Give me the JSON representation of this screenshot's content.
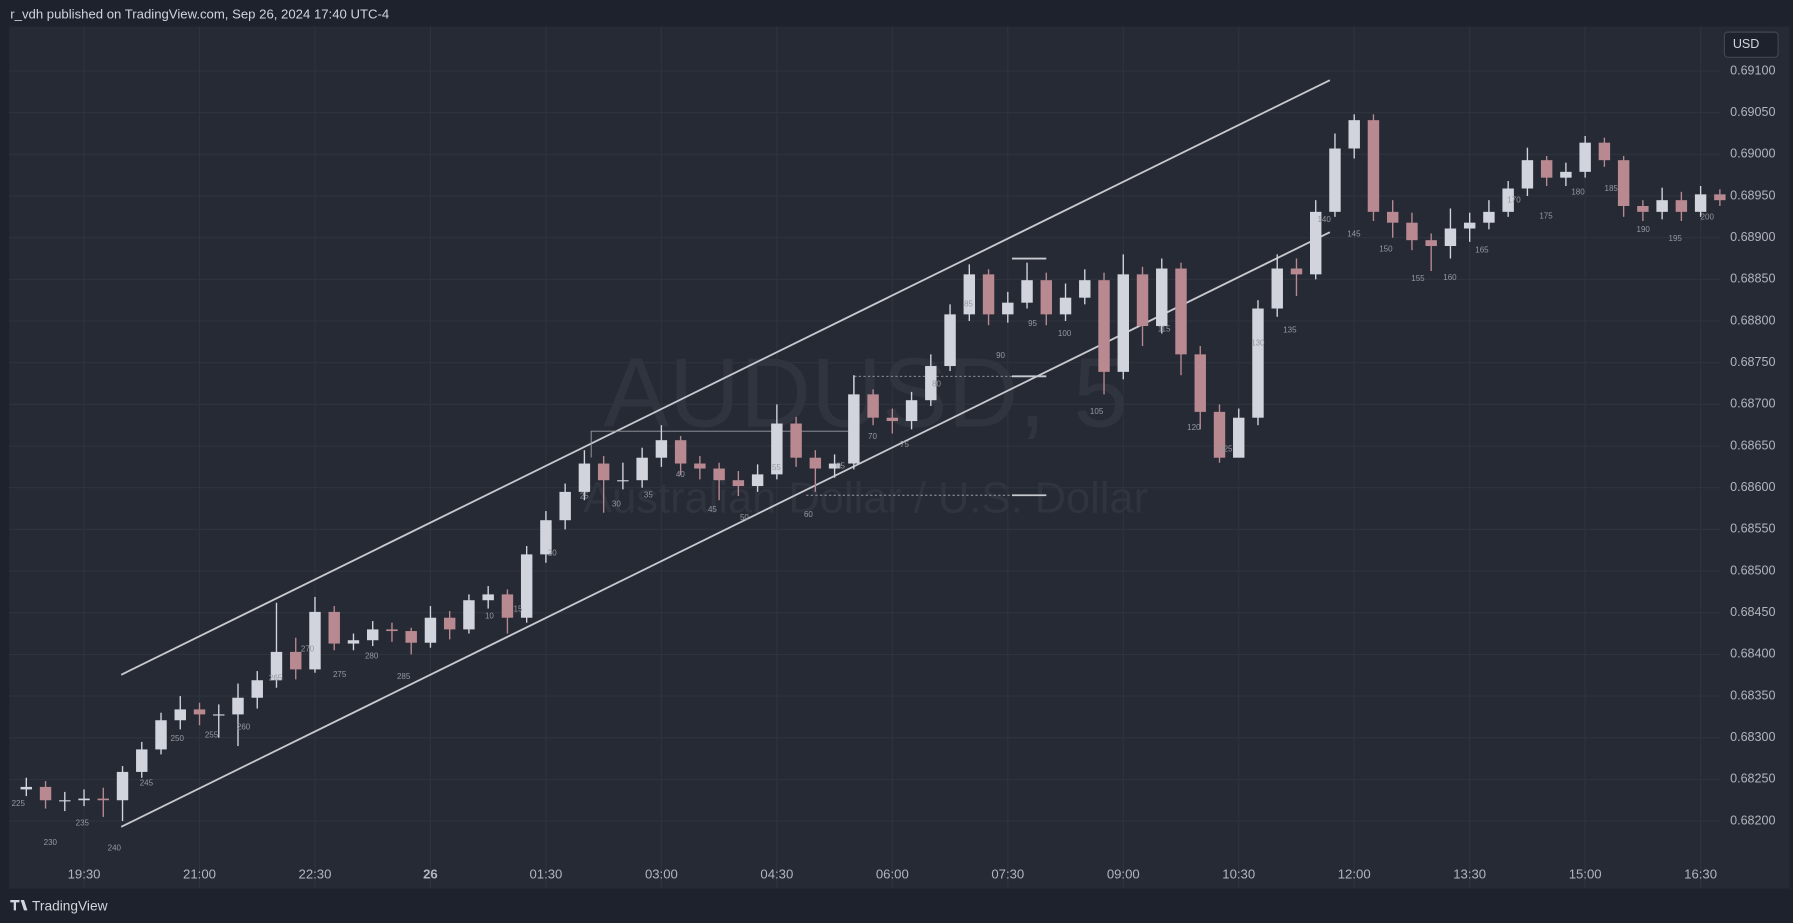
{
  "publisher_line": "r_vdh published on TradingView.com, Sep 26, 2024 17:40 UTC-4",
  "currency": "USD",
  "brand": "TradingView",
  "chart_data": {
    "type": "candlestick",
    "title": "AUDUSD, 5",
    "subtitle": "Australian Dollar / U.S. Dollar",
    "up_color": "#d1d4dc",
    "down_color": "#b88990",
    "grid": true,
    "categories": [
      null,
      null,
      null,
      "19:30",
      null,
      null,
      null,
      null,
      null,
      "21:00",
      null,
      null,
      null,
      null,
      null,
      "22:30",
      null,
      null,
      null,
      null,
      null,
      "26",
      null,
      null,
      null,
      null,
      null,
      "01:30",
      null,
      null,
      null,
      null,
      null,
      "03:00",
      null,
      null,
      null,
      null,
      null,
      "04:30",
      null,
      null,
      null,
      null,
      null,
      "06:00",
      null,
      null,
      null,
      null,
      null,
      "07:30",
      null,
      null,
      null,
      null,
      null,
      "09:00",
      null,
      null,
      null,
      null,
      null,
      "10:30",
      null,
      null,
      null,
      null,
      null,
      "12:00",
      null,
      null,
      null,
      null,
      null,
      "13:30",
      null,
      null,
      null,
      null,
      null,
      "15:00",
      null,
      null,
      null,
      null,
      null,
      "16:30",
      null
    ],
    "open": [
      0.68238,
      0.68241,
      0.68225,
      0.68225,
      0.68227,
      0.68225,
      0.68259,
      0.68286,
      0.68321,
      0.68334,
      0.68328,
      0.68328,
      0.68348,
      0.68369,
      0.68403,
      0.68382,
      0.68451,
      0.68413,
      0.68417,
      0.6843,
      0.68428,
      0.68414,
      0.68444,
      0.6843,
      0.68465,
      0.68472,
      0.68444,
      0.6852,
      0.68561,
      0.68595,
      0.68629,
      0.68609,
      0.68609,
      0.68636,
      0.68657,
      0.68629,
      0.68623,
      0.68609,
      0.68602,
      0.68616,
      0.68677,
      0.68636,
      0.68623,
      0.68629,
      0.68712,
      0.68684,
      0.6868,
      0.68705,
      0.68746,
      0.68808,
      0.68856,
      0.68808,
      0.68822,
      0.68849,
      0.68808,
      0.68828,
      0.68849,
      0.68739,
      0.68856,
      0.68794,
      0.68863,
      0.6876,
      0.68691,
      0.68636,
      0.68684,
      0.68815,
      0.68863,
      0.68856,
      0.68931,
      0.69007,
      0.69041,
      0.68931,
      0.68918,
      0.68897,
      0.6889,
      0.68911,
      0.68918,
      0.68931,
      0.68959,
      0.68993,
      0.68972,
      0.68979,
      0.69014,
      0.68993,
      0.68938,
      0.68931,
      0.68945,
      0.68931,
      0.68952
    ],
    "high": [
      0.68252,
      0.68248,
      0.68235,
      0.68238,
      0.6824,
      0.68266,
      0.68295,
      0.6833,
      0.6835,
      0.68342,
      0.6834,
      0.68365,
      0.6838,
      0.68462,
      0.6842,
      0.68469,
      0.68458,
      0.68425,
      0.6844,
      0.68438,
      0.68432,
      0.68458,
      0.68452,
      0.68472,
      0.68482,
      0.68478,
      0.6853,
      0.68572,
      0.68605,
      0.68645,
      0.68638,
      0.6863,
      0.68648,
      0.68675,
      0.68662,
      0.68638,
      0.6863,
      0.6862,
      0.68628,
      0.687,
      0.68685,
      0.68645,
      0.6864,
      0.68735,
      0.68718,
      0.68695,
      0.68715,
      0.6876,
      0.6882,
      0.68868,
      0.68862,
      0.68835,
      0.6887,
      0.68858,
      0.68845,
      0.68862,
      0.68858,
      0.6888,
      0.68865,
      0.68875,
      0.6887,
      0.6877,
      0.687,
      0.68695,
      0.68825,
      0.6888,
      0.68875,
      0.68945,
      0.69025,
      0.69048,
      0.69048,
      0.68945,
      0.6893,
      0.68905,
      0.68935,
      0.6893,
      0.68945,
      0.68968,
      0.69008,
      0.68998,
      0.6899,
      0.69022,
      0.6902,
      0.68998,
      0.68945,
      0.6896,
      0.68955,
      0.68962,
      0.68958
    ],
    "low": [
      0.6823,
      0.68215,
      0.68212,
      0.68218,
      0.68205,
      0.682,
      0.68252,
      0.6828,
      0.6831,
      0.68315,
      0.683,
      0.6829,
      0.68335,
      0.6836,
      0.6837,
      0.68378,
      0.68405,
      0.68405,
      0.6841,
      0.68415,
      0.684,
      0.68408,
      0.68418,
      0.68425,
      0.68455,
      0.68425,
      0.68438,
      0.6851,
      0.6855,
      0.68585,
      0.6857,
      0.68598,
      0.686,
      0.68625,
      0.68615,
      0.6861,
      0.68585,
      0.6859,
      0.68595,
      0.6861,
      0.68625,
      0.68595,
      0.68612,
      0.68622,
      0.68675,
      0.68665,
      0.6867,
      0.68698,
      0.6874,
      0.688,
      0.68795,
      0.68798,
      0.68815,
      0.68795,
      0.688,
      0.6882,
      0.68712,
      0.6873,
      0.6877,
      0.68785,
      0.68735,
      0.6867,
      0.6863,
      0.6864,
      0.68675,
      0.68805,
      0.6883,
      0.6885,
      0.68925,
      0.68995,
      0.6892,
      0.689,
      0.68885,
      0.6886,
      0.68875,
      0.68895,
      0.6891,
      0.68925,
      0.6895,
      0.68962,
      0.68962,
      0.68972,
      0.68985,
      0.68925,
      0.6892,
      0.68922,
      0.6892,
      0.68925,
      0.68938
    ],
    "close": [
      0.68241,
      0.68225,
      0.68225,
      0.68227,
      0.68225,
      0.68259,
      0.68286,
      0.68321,
      0.68334,
      0.68328,
      0.68328,
      0.68348,
      0.68369,
      0.68403,
      0.68382,
      0.68451,
      0.68413,
      0.68417,
      0.6843,
      0.68428,
      0.68414,
      0.68444,
      0.6843,
      0.68465,
      0.68472,
      0.68444,
      0.6852,
      0.68561,
      0.68595,
      0.68629,
      0.68609,
      0.68609,
      0.68636,
      0.68657,
      0.68629,
      0.68623,
      0.68609,
      0.68602,
      0.68616,
      0.68677,
      0.68636,
      0.68623,
      0.68629,
      0.68712,
      0.68684,
      0.6868,
      0.68705,
      0.68746,
      0.68808,
      0.68856,
      0.68808,
      0.68822,
      0.68849,
      0.68808,
      0.68828,
      0.68849,
      0.68739,
      0.68856,
      0.68794,
      0.68863,
      0.6876,
      0.68691,
      0.68636,
      0.68684,
      0.68815,
      0.68863,
      0.68856,
      0.68931,
      0.69007,
      0.69041,
      0.68931,
      0.68918,
      0.68897,
      0.6889,
      0.68911,
      0.68918,
      0.68931,
      0.68959,
      0.68993,
      0.68972,
      0.68979,
      0.69014,
      0.68993,
      0.68938,
      0.68931,
      0.68945,
      0.68931,
      0.68952,
      0.68945
    ],
    "ylim": [
      0.68119,
      0.691535
    ],
    "yticks": [
      {
        "value": 0.682,
        "label": "0.68200"
      },
      {
        "value": 0.6825,
        "label": "0.68250"
      },
      {
        "value": 0.683,
        "label": "0.68300"
      },
      {
        "value": 0.6835,
        "label": "0.68350"
      },
      {
        "value": 0.684,
        "label": "0.68400"
      },
      {
        "value": 0.6845,
        "label": "0.68450"
      },
      {
        "value": 0.685,
        "label": "0.68500"
      },
      {
        "value": 0.6855,
        "label": "0.68550"
      },
      {
        "value": 0.686,
        "label": "0.68600"
      },
      {
        "value": 0.6865,
        "label": "0.68650"
      },
      {
        "value": 0.687,
        "label": "0.68700"
      },
      {
        "value": 0.6875,
        "label": "0.68750"
      },
      {
        "value": 0.688,
        "label": "0.68800"
      },
      {
        "value": 0.6885,
        "label": "0.68850"
      },
      {
        "value": 0.689,
        "label": "0.68900"
      },
      {
        "value": 0.6895,
        "label": "0.68950"
      },
      {
        "value": 0.69,
        "label": "0.69000"
      },
      {
        "value": 0.6905,
        "label": "0.69050"
      },
      {
        "value": 0.691,
        "label": "0.69100"
      }
    ],
    "annotations": [
      "225",
      "230",
      "235",
      "240",
      "245",
      "250",
      "255",
      "260",
      "265",
      "270",
      "275",
      "280",
      "285",
      "10",
      "15",
      "20",
      "25",
      "30",
      "35",
      "40",
      "45",
      "50",
      "55",
      "60",
      "65",
      "70",
      "75",
      "80",
      "85",
      "90",
      "95",
      "100",
      "105",
      "115",
      "120",
      "125",
      "130",
      "135",
      "140",
      "145",
      "150",
      "155",
      "160",
      "165",
      "170",
      "175",
      "180",
      "185",
      "190",
      "195",
      "200"
    ]
  }
}
